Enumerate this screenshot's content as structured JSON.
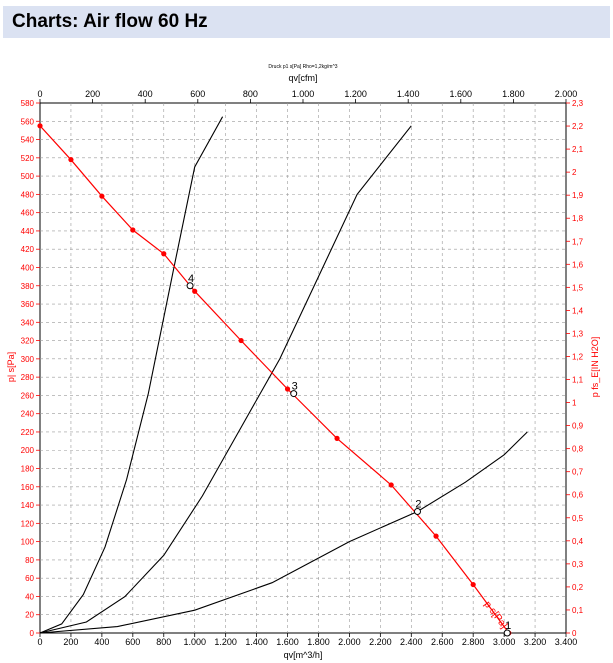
{
  "header": {
    "title": "Charts: Air flow 60 Hz"
  },
  "chart_data": {
    "type": "line",
    "title": "Druck p1 s[Pa] Rho=1,2kg/m^3",
    "top_axis": {
      "label": "qv[cfm]",
      "range": [
        0,
        2000
      ],
      "ticks": [
        "0",
        "200",
        "400",
        "600",
        "800",
        "1.000",
        "1.200",
        "1.400",
        "1.600",
        "1.800",
        "2.000"
      ]
    },
    "bottom_axis": {
      "label": "qv[m^3/h]",
      "range": [
        0,
        3400
      ],
      "ticks": [
        "0",
        "200",
        "400",
        "600",
        "800",
        "1.000",
        "1.200",
        "1.400",
        "1.600",
        "1.800",
        "2.000",
        "2.200",
        "2.400",
        "2.600",
        "2.800",
        "3.000",
        "3.200",
        "3.400"
      ]
    },
    "left_axis": {
      "label": "p| s[Pa]",
      "range": [
        0,
        580
      ],
      "color": "#ff0000",
      "ticks": [
        "0",
        "20",
        "40",
        "60",
        "80",
        "100",
        "120",
        "140",
        "160",
        "180",
        "200",
        "220",
        "240",
        "260",
        "280",
        "300",
        "320",
        "340",
        "360",
        "380",
        "400",
        "420",
        "440",
        "460",
        "480",
        "500",
        "520",
        "540",
        "560",
        "580"
      ]
    },
    "right_axis": {
      "label": "p fs_E[IN H2O]",
      "range": [
        0,
        2.3
      ],
      "color": "#ff0000",
      "ticks": [
        "0",
        "0,1",
        "0,2",
        "0,3",
        "0,4",
        "0,5",
        "0,6",
        "0,7",
        "0,8",
        "0,9",
        "1",
        "1,1",
        "1,2",
        "1,3",
        "1,4",
        "1,5",
        "1,6",
        "1,7",
        "1,8",
        "1,9",
        "2",
        "2,1",
        "2,2",
        "2,3"
      ]
    },
    "grid": true,
    "colors": {
      "fan_curve": "#ff0000",
      "system_curves": "#000000",
      "axis_text": "#ff0000"
    },
    "series": [
      {
        "name": "p s[Pa]",
        "color": "#ff0000",
        "markers": true,
        "points": [
          [
            0,
            555
          ],
          [
            200,
            518
          ],
          [
            400,
            478
          ],
          [
            600,
            441
          ],
          [
            800,
            415
          ],
          [
            1000,
            374
          ],
          [
            1300,
            320
          ],
          [
            1600,
            267
          ],
          [
            1920,
            213
          ],
          [
            2270,
            162
          ],
          [
            2560,
            106
          ],
          [
            2800,
            53
          ],
          [
            3030,
            0
          ]
        ]
      }
    ],
    "system_curves": [
      {
        "color": "#000000",
        "points": [
          [
            0,
            0
          ],
          [
            140,
            10
          ],
          [
            280,
            42
          ],
          [
            420,
            94
          ],
          [
            560,
            168
          ],
          [
            700,
            262
          ],
          [
            860,
            395
          ],
          [
            1000,
            510
          ],
          [
            1180,
            565
          ]
        ]
      },
      {
        "color": "#000000",
        "points": [
          [
            0,
            0
          ],
          [
            300,
            12
          ],
          [
            550,
            40
          ],
          [
            800,
            85
          ],
          [
            1050,
            150
          ],
          [
            1300,
            225
          ],
          [
            1550,
            300
          ],
          [
            1800,
            390
          ],
          [
            2050,
            480
          ],
          [
            2400,
            555
          ]
        ]
      },
      {
        "color": "#000000",
        "points": [
          [
            0,
            0
          ],
          [
            500,
            7
          ],
          [
            1000,
            25
          ],
          [
            1500,
            55
          ],
          [
            2000,
            100
          ],
          [
            2440,
            133
          ],
          [
            2750,
            165
          ],
          [
            3000,
            195
          ],
          [
            3150,
            220
          ]
        ]
      }
    ],
    "annotations": [
      {
        "label": "4",
        "x": 970,
        "y": 380
      },
      {
        "label": "3",
        "x": 1640,
        "y": 262
      },
      {
        "label": "2",
        "x": 2440,
        "y": 133
      },
      {
        "label": "1",
        "x": 3020,
        "y": 0
      }
    ]
  }
}
